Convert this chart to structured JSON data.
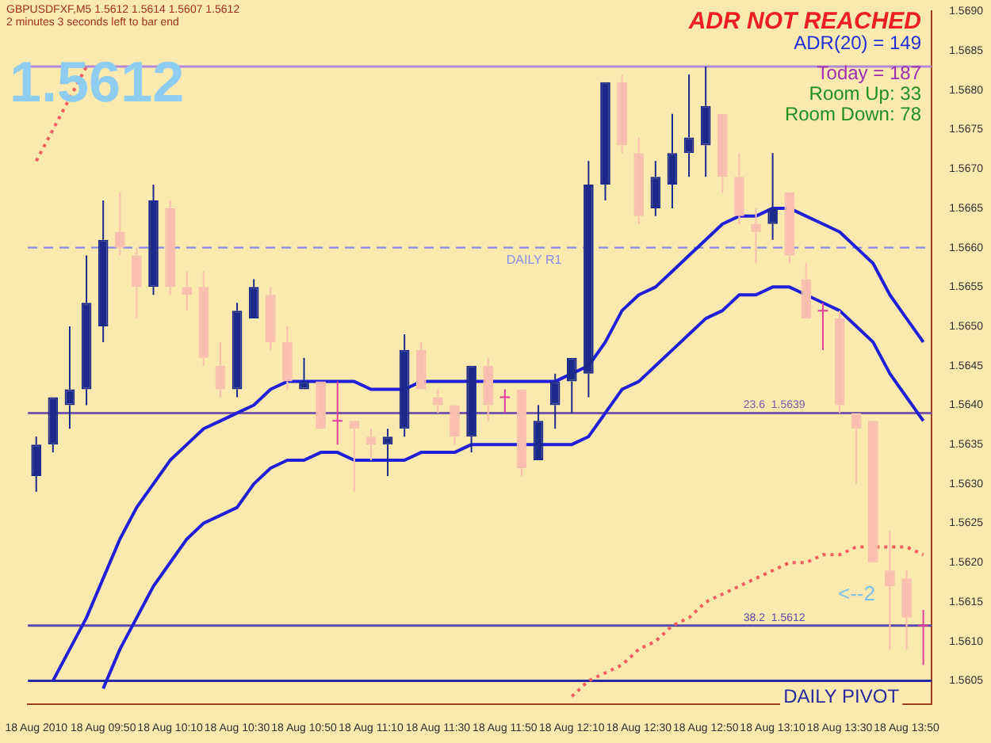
{
  "chart_data": {
    "type": "candlestick",
    "title": "GBPUSDFXF,M5  1.5612 1.5614 1.5607 1.5612",
    "subtitle": "2 minutes 3 seconds left to bar end",
    "annotations": [
      "1.5612",
      "ADR NOT REACHED",
      "ADR(20) = 149",
      "Today = 187",
      "Room Up: 33",
      "Room Down: 78",
      "<--2"
    ],
    "categories": [
      "18 Aug 2010",
      null,
      null,
      null,
      "18 Aug 09:50",
      null,
      null,
      null,
      "18 Aug 10:10",
      null,
      null,
      null,
      "18 Aug 10:30",
      null,
      null,
      null,
      "18 Aug 10:50",
      null,
      null,
      null,
      "18 Aug 11:10",
      null,
      null,
      null,
      "18 Aug 11:30",
      null,
      null,
      null,
      "18 Aug 11:50",
      null,
      null,
      null,
      "18 Aug 12:10",
      null,
      null,
      null,
      "18 Aug 12:30",
      null,
      null,
      null,
      "18 Aug 12:50",
      null,
      null,
      null,
      "18 Aug 13:10",
      null,
      null,
      null,
      "18 Aug 13:30",
      null,
      null,
      null,
      "18 Aug 13:50",
      null
    ],
    "ohlc": [
      [
        1.5631,
        1.5636,
        1.5629,
        1.5635
      ],
      [
        1.5635,
        1.5641,
        1.5634,
        1.5641
      ],
      [
        1.564,
        1.565,
        1.5637,
        1.5642
      ],
      [
        1.5642,
        1.5659,
        1.564,
        1.5653
      ],
      [
        1.565,
        1.5666,
        1.5648,
        1.5661
      ],
      [
        1.5662,
        1.5667,
        1.5659,
        1.566
      ],
      [
        1.5659,
        1.566,
        1.5651,
        1.5655
      ],
      [
        1.5655,
        1.5668,
        1.5654,
        1.5666
      ],
      [
        1.5665,
        1.5666,
        1.5654,
        1.5655
      ],
      [
        1.5655,
        1.5657,
        1.5652,
        1.5654
      ],
      [
        1.5655,
        1.5657,
        1.5645,
        1.5646
      ],
      [
        1.5645,
        1.5648,
        1.5641,
        1.5642
      ],
      [
        1.5642,
        1.5653,
        1.5641,
        1.5652
      ],
      [
        1.5651,
        1.5656,
        1.5651,
        1.5655
      ],
      [
        1.5654,
        1.5655,
        1.5647,
        1.5648
      ],
      [
        1.5648,
        1.565,
        1.5642,
        1.5643
      ],
      [
        1.5642,
        1.5646,
        1.5642,
        1.5643
      ],
      [
        1.5643,
        1.5643,
        1.5637,
        1.5637
      ],
      [
        1.5638,
        1.5643,
        1.5635,
        1.5638
      ],
      [
        1.5638,
        1.5638,
        1.5629,
        1.5637
      ],
      [
        1.5636,
        1.5637,
        1.5633,
        1.5635
      ],
      [
        1.5635,
        1.5637,
        1.5631,
        1.5636
      ],
      [
        1.5637,
        1.5649,
        1.5636,
        1.5647
      ],
      [
        1.5647,
        1.5648,
        1.5642,
        1.5642
      ],
      [
        1.5641,
        1.5642,
        1.5639,
        1.564
      ],
      [
        1.564,
        1.564,
        1.5635,
        1.5636
      ],
      [
        1.5636,
        1.5645,
        1.5634,
        1.5645
      ],
      [
        1.5645,
        1.5646,
        1.5638,
        1.564
      ],
      [
        1.5641,
        1.5642,
        1.5639,
        1.5641
      ],
      [
        1.5642,
        1.5642,
        1.5631,
        1.5632
      ],
      [
        1.5633,
        1.564,
        1.5633,
        1.5638
      ],
      [
        1.564,
        1.5644,
        1.5637,
        1.5643
      ],
      [
        1.5643,
        1.5646,
        1.5639,
        1.5646
      ],
      [
        1.5644,
        1.5671,
        1.5641,
        1.5668
      ],
      [
        1.5668,
        1.5681,
        1.5666,
        1.5681
      ],
      [
        1.5681,
        1.5682,
        1.5672,
        1.5673
      ],
      [
        1.5672,
        1.5674,
        1.5663,
        1.5664
      ],
      [
        1.5665,
        1.5671,
        1.5664,
        1.5669
      ],
      [
        1.5668,
        1.5677,
        1.5665,
        1.5672
      ],
      [
        1.5672,
        1.5682,
        1.5669,
        1.5674
      ],
      [
        1.5673,
        1.5683,
        1.5669,
        1.5678
      ],
      [
        1.5677,
        1.5677,
        1.5667,
        1.5669
      ],
      [
        1.5669,
        1.5672,
        1.5663,
        1.5664
      ],
      [
        1.5663,
        1.5665,
        1.5658,
        1.5662
      ],
      [
        1.5663,
        1.5672,
        1.5661,
        1.5665
      ],
      [
        1.5667,
        1.5667,
        1.5658,
        1.5659
      ],
      [
        1.5656,
        1.5658,
        1.5651,
        1.5651
      ],
      [
        1.5652,
        1.5653,
        1.5647,
        1.5652
      ],
      [
        1.5651,
        1.5652,
        1.5639,
        1.564
      ],
      [
        1.5639,
        1.5639,
        1.563,
        1.5637
      ],
      [
        1.5638,
        1.5638,
        1.562,
        1.562
      ],
      [
        1.5619,
        1.5624,
        1.5609,
        1.5617
      ],
      [
        1.5618,
        1.5619,
        1.5609,
        1.5613
      ],
      [
        1.5612,
        1.5614,
        1.5607,
        1.5612
      ]
    ],
    "colors": [
      "#1c2a8c",
      "#1c2a8c",
      "#1c2a8c",
      "#1c2a8c",
      "#1c2a8c",
      "#f8bfae",
      "#f8bfae",
      "#1c2a8c",
      "#f8bfae",
      "#f8bfae",
      "#f8bfae",
      "#f8bfae",
      "#1c2a8c",
      "#1c2a8c",
      "#f8bfae",
      "#f8bfae",
      "#1c2a8c",
      "#f8bfae",
      "#e0409a",
      "#f8bfae",
      "#f8bfae",
      "#1c2a8c",
      "#1c2a8c",
      "#f8bfae",
      "#f8bfae",
      "#f8bfae",
      "#1c2a8c",
      "#f8bfae",
      "#e0409a",
      "#f8bfae",
      "#1c2a8c",
      "#1c2a8c",
      "#1c2a8c",
      "#1c2a8c",
      "#1c2a8c",
      "#f8bfae",
      "#f8bfae",
      "#1c2a8c",
      "#1c2a8c",
      "#1c2a8c",
      "#1c2a8c",
      "#f8bfae",
      "#f8bfae",
      "#f8bfae",
      "#1c2a8c",
      "#f8bfae",
      "#f8bfae",
      "#e0409a",
      "#f8bfae",
      "#f8bfae",
      "#f8bfae",
      "#f8bfae",
      "#f8bfae",
      "#e0409a"
    ],
    "series": [
      {
        "type": "line",
        "color": "#2020d8",
        "line_style": "solid",
        "values": [
          null,
          1.5605,
          1.5609,
          1.5613,
          1.5618,
          1.5623,
          1.5627,
          1.563,
          1.5633,
          1.5635,
          1.5637,
          1.5638,
          1.5639,
          1.564,
          1.5642,
          1.5643,
          1.5643,
          1.5643,
          1.5643,
          1.5643,
          1.5642,
          1.5642,
          1.5642,
          1.5643,
          1.5643,
          1.5643,
          1.5643,
          1.5643,
          1.5643,
          1.5643,
          1.5643,
          1.5643,
          1.5644,
          1.5645,
          1.5648,
          1.5652,
          1.5654,
          1.5655,
          1.5657,
          1.5659,
          1.5661,
          1.5663,
          1.5664,
          1.5664,
          1.5665,
          1.5665,
          1.5664,
          1.5663,
          1.5662,
          1.566,
          1.5658,
          1.5654,
          1.5651,
          1.5648
        ]
      },
      {
        "type": "line",
        "color": "#2020d8",
        "line_style": "solid",
        "values": [
          null,
          null,
          null,
          null,
          1.5604,
          1.5609,
          1.5613,
          1.5617,
          1.562,
          1.5623,
          1.5625,
          1.5626,
          1.5627,
          1.563,
          1.5632,
          1.5633,
          1.5633,
          1.5634,
          1.5634,
          1.5633,
          1.5633,
          1.5633,
          1.5633,
          1.5634,
          1.5634,
          1.5634,
          1.5635,
          1.5635,
          1.5635,
          1.5635,
          1.5635,
          1.5635,
          1.5635,
          1.5636,
          1.5639,
          1.5642,
          1.5643,
          1.5645,
          1.5647,
          1.5649,
          1.5651,
          1.5652,
          1.5654,
          1.5654,
          1.5655,
          1.5655,
          1.5654,
          1.5653,
          1.5652,
          1.565,
          1.5648,
          1.5644,
          1.5641,
          1.5638
        ]
      },
      {
        "type": "line",
        "color": "#f06060",
        "line_style": "dotted",
        "values": [
          1.5671,
          1.5675,
          1.5679,
          1.5683,
          null,
          null,
          null,
          null,
          null,
          null,
          null,
          null,
          null,
          null,
          null,
          null,
          null,
          null,
          null,
          null,
          null,
          null,
          null,
          null,
          null,
          null,
          null,
          null,
          null,
          null,
          null,
          null,
          1.5603,
          1.5605,
          1.5606,
          1.5607,
          1.5609,
          1.561,
          1.5612,
          1.5613,
          1.5615,
          1.5616,
          1.5617,
          1.5618,
          1.5619,
          1.562,
          1.562,
          1.5621,
          1.5621,
          1.5622,
          1.5622,
          1.5622,
          1.5622,
          1.5621
        ]
      }
    ],
    "ylim": [
      1.5602,
      1.569
    ],
    "yticks": [
      {
        "value": 1.5605,
        "label": "1.5605"
      },
      {
        "value": 1.561,
        "label": "1.5610"
      },
      {
        "value": 1.5615,
        "label": "1.5615"
      },
      {
        "value": 1.562,
        "label": "1.5620"
      },
      {
        "value": 1.5625,
        "label": "1.5625"
      },
      {
        "value": 1.563,
        "label": "1.5630"
      },
      {
        "value": 1.5635,
        "label": "1.5635"
      },
      {
        "value": 1.564,
        "label": "1.5640"
      },
      {
        "value": 1.5645,
        "label": "1.5645"
      },
      {
        "value": 1.565,
        "label": "1.5650"
      },
      {
        "value": 1.5655,
        "label": "1.5655"
      },
      {
        "value": 1.566,
        "label": "1.5660"
      },
      {
        "value": 1.5665,
        "label": "1.5665"
      },
      {
        "value": 1.567,
        "label": "1.5670"
      },
      {
        "value": 1.5675,
        "label": "1.5675"
      },
      {
        "value": 1.568,
        "label": "1.5680"
      },
      {
        "value": 1.5685,
        "label": "1.5685"
      },
      {
        "value": 1.569,
        "label": "1.5690"
      }
    ],
    "ref_lines": [
      {
        "axis": "y",
        "value": 1.5683,
        "color": "#b488d8"
      },
      {
        "axis": "y",
        "value": 1.566,
        "label": "DAILY R1",
        "color": "#8c8ce6",
        "line_style": "dashed"
      },
      {
        "axis": "y",
        "value": 1.5639,
        "label": "23.6  1.5639",
        "color": "#7a58a8"
      },
      {
        "axis": "y",
        "value": 1.5612,
        "label": "38.2  1.5612",
        "color": "#5a48a8"
      },
      {
        "axis": "y",
        "value": 1.5605,
        "label": "DAILY PIVOT",
        "color": "#2a2aa0"
      }
    ],
    "marker": "none"
  }
}
